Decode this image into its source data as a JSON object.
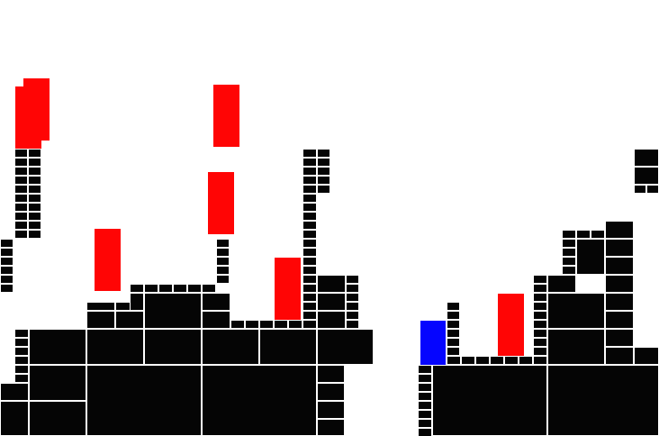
{
  "colors": {
    "background": "#ffffff",
    "block": "#050505",
    "block_seam": "#ffffff",
    "enemy": "#ff0505",
    "player": "#0505ff"
  },
  "entities": {
    "player_count": 1,
    "enemy_count": 7
  }
}
